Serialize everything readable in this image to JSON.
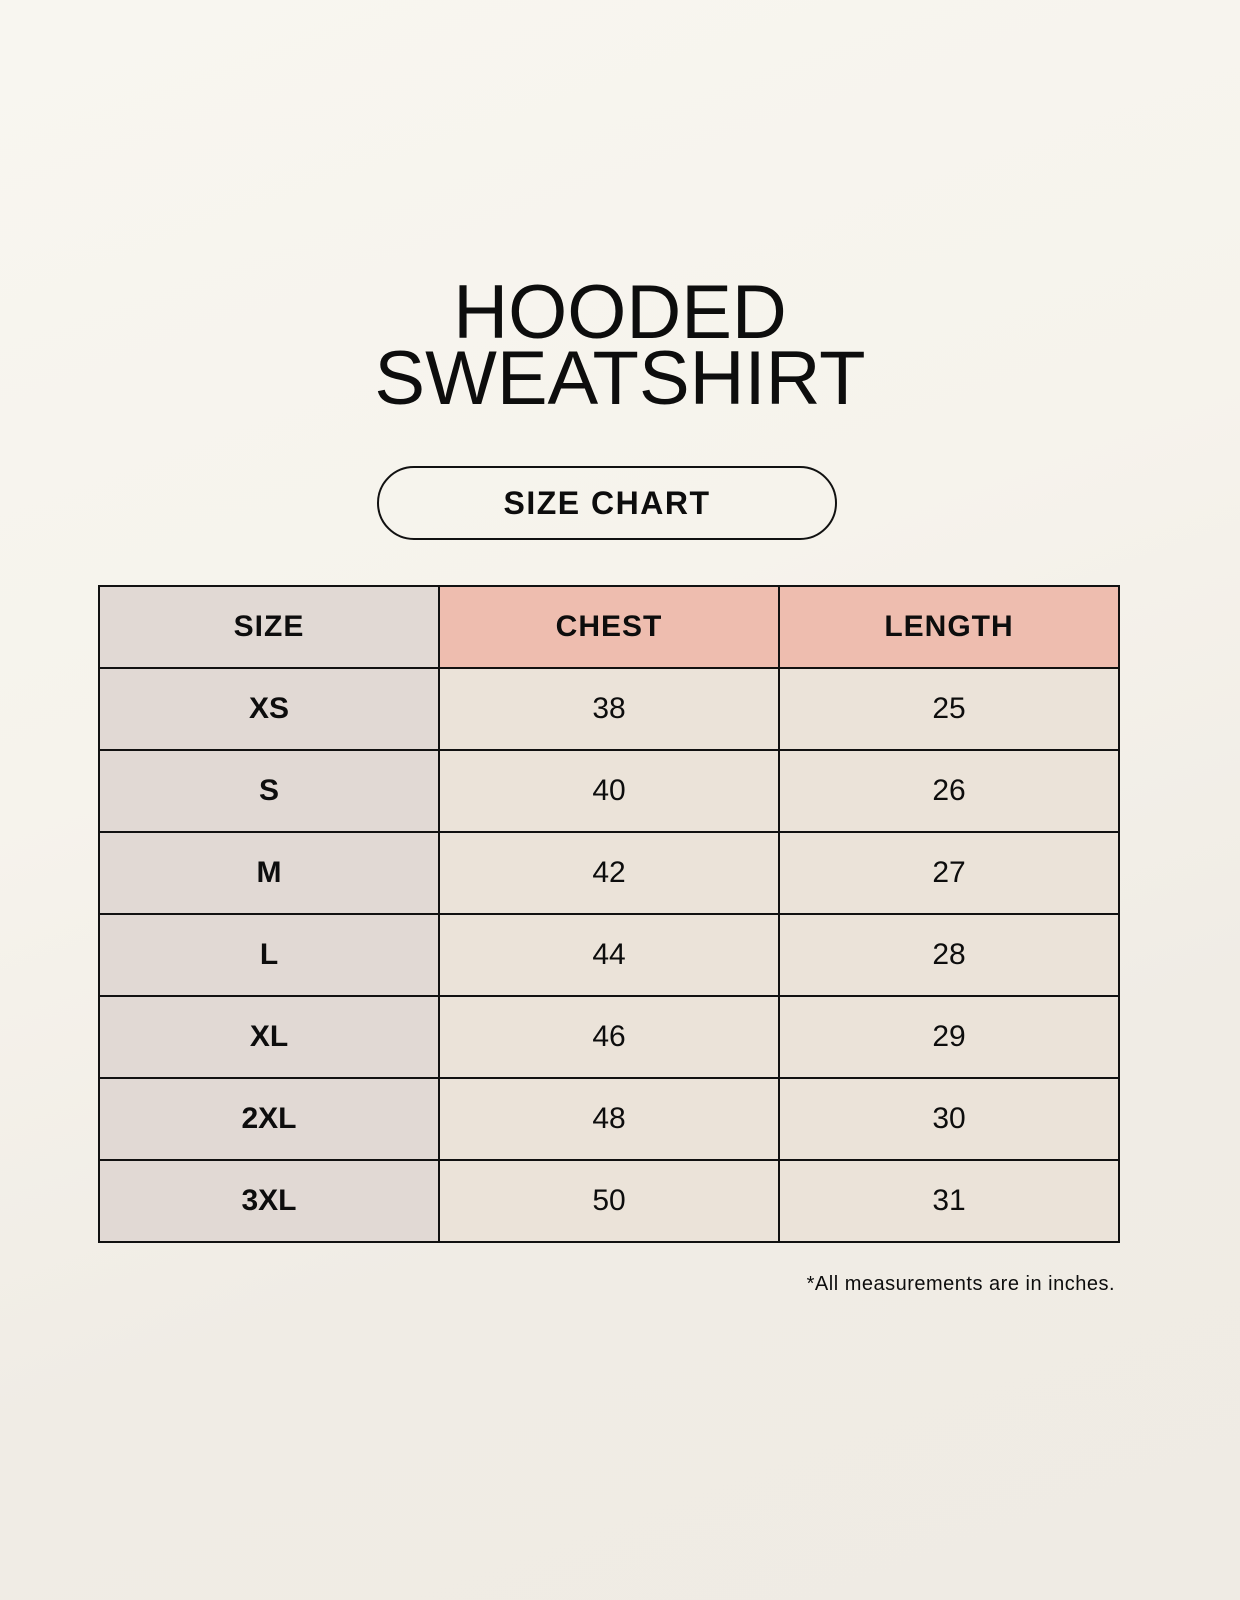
{
  "title_line1": "HOODED",
  "title_line2": "SWEATSHIRT",
  "subtitle": "SIZE CHART",
  "table": {
    "headers": [
      "SIZE",
      "CHEST",
      "LENGTH"
    ],
    "rows": [
      [
        "XS",
        "38",
        "25"
      ],
      [
        "S",
        "40",
        "26"
      ],
      [
        "M",
        "42",
        "27"
      ],
      [
        "L",
        "44",
        "28"
      ],
      [
        "XL",
        "46",
        "29"
      ],
      [
        "2XL",
        "48",
        "30"
      ],
      [
        "3XL",
        "50",
        "31"
      ]
    ]
  },
  "note": "*All measurements are in inches.",
  "colors": {
    "size_column": "#e1d9d4",
    "header_accent": "#eebdaf",
    "value_cells": "#ebe3d9"
  }
}
